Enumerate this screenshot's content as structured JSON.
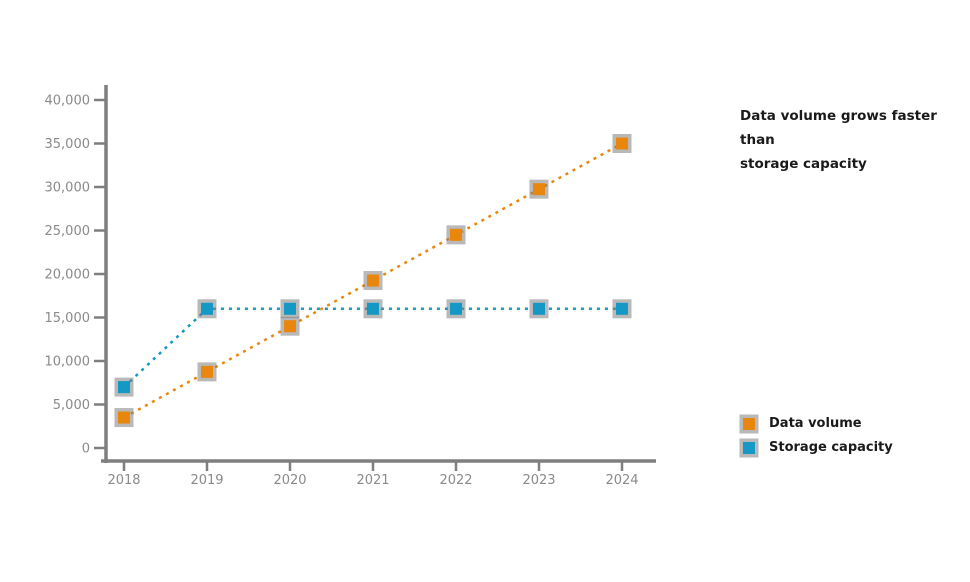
{
  "title": {
    "line1": "Data volume grows faster than",
    "line2": "storage capacity"
  },
  "chart_data": {
    "type": "line",
    "categories": [
      "2018",
      "2019",
      "2020",
      "2021",
      "2022",
      "2023",
      "2024"
    ],
    "series": [
      {
        "name": "Data volume",
        "color": "#E8860D",
        "values": [
          3500,
          8750,
          14000,
          19250,
          24500,
          29750,
          35000
        ]
      },
      {
        "name": "Storage capacity",
        "color": "#1598C3",
        "values": [
          7000,
          16000,
          16000,
          16000,
          16000,
          16000,
          16000
        ]
      }
    ],
    "title": "Data volume grows faster than storage capacity",
    "xlabel": "",
    "ylabel": "",
    "ylim": [
      0,
      40000
    ],
    "y_ticks": [
      0,
      5000,
      10000,
      15000,
      20000,
      25000,
      30000,
      35000,
      40000
    ],
    "y_tick_labels": [
      "0",
      "5,000",
      "10,000",
      "15,000",
      "20,000",
      "25,000",
      "30,000",
      "35,000",
      "40,000"
    ],
    "grid": false,
    "legend_position": "bottom-right",
    "line_style": "dashed",
    "marker": "square"
  },
  "colors": {
    "axis": "#7F7F7F",
    "tick_text": "#8A8A8A",
    "title_text": "#1A1A1A",
    "marker_halo": "rgba(127,127,127,0.55)"
  }
}
